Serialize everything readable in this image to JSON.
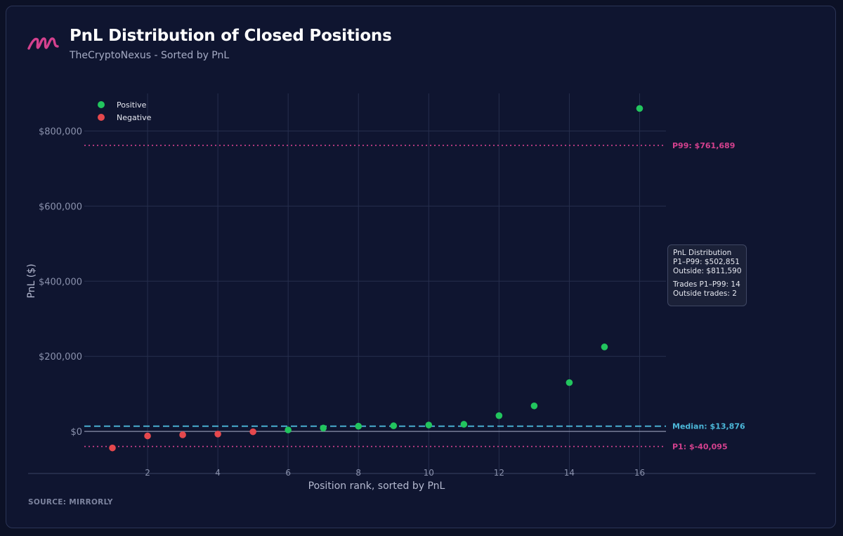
{
  "header": {
    "title": "PnL Distribution of Closed Positions",
    "subtitle": "TheCryptoNexus - Sorted by PnL"
  },
  "footer": {
    "source": "SOURCE: MIRRORLY"
  },
  "logo_icon": "scribble-m-logo-icon",
  "colors": {
    "background": "#0f1530",
    "positive": "#22c55e",
    "negative": "#e5484d",
    "percentile": "#d4418e",
    "median": "#4cb8d9",
    "grid": "#262e4d",
    "axis_text": "#8b92ad"
  },
  "tooltip": {
    "title": "PnL Distribution",
    "range_value": "P1–P99: $502,851",
    "outside_value": "Outside: $811,590",
    "trades_range": "Trades P1–P99: 14",
    "trades_outside": "Outside trades: 2"
  },
  "chart_data": {
    "type": "scatter",
    "title": "PnL Distribution of Closed Positions",
    "subtitle": "TheCryptoNexus - Sorted by PnL",
    "xlabel": "Position rank, sorted by PnL",
    "ylabel": "PnL ($)",
    "xlim": [
      0.2,
      16.75
    ],
    "ylim": [
      -112000,
      900000
    ],
    "x_ticks": [
      2,
      4,
      6,
      8,
      10,
      12,
      14,
      16
    ],
    "x_tick_labels": [
      "2",
      "4",
      "6",
      "8",
      "10",
      "12",
      "14",
      "16"
    ],
    "y_ticks": [
      0,
      200000,
      400000,
      600000,
      800000
    ],
    "y_tick_labels": [
      "$0",
      "$200,000",
      "$400,000",
      "$600,000",
      "$800,000"
    ],
    "grid": true,
    "legend_position": "top-left",
    "series": [
      {
        "name": "Positive",
        "color": "#22c55e",
        "x": [
          6,
          7,
          8,
          9,
          10,
          11,
          12,
          13,
          14,
          15,
          16
        ],
        "y": [
          4000,
          9000,
          13876,
          15000,
          17000,
          19000,
          42000,
          68000,
          130000,
          225000,
          860000
        ]
      },
      {
        "name": "Negative",
        "color": "#e5484d",
        "x": [
          1,
          2,
          3,
          4,
          5
        ],
        "y": [
          -44000,
          -12000,
          -9000,
          -7000,
          -1000
        ]
      }
    ],
    "reference_lines": [
      {
        "label": "P99: $761,689",
        "value": 761689,
        "style": "dotted",
        "color": "#d4418e"
      },
      {
        "label": "Median: $13,876",
        "value": 13876,
        "style": "dashed",
        "color": "#4cb8d9"
      },
      {
        "label": "P1: $-40,095",
        "value": -40095,
        "style": "dotted",
        "color": "#d4418e"
      }
    ]
  }
}
